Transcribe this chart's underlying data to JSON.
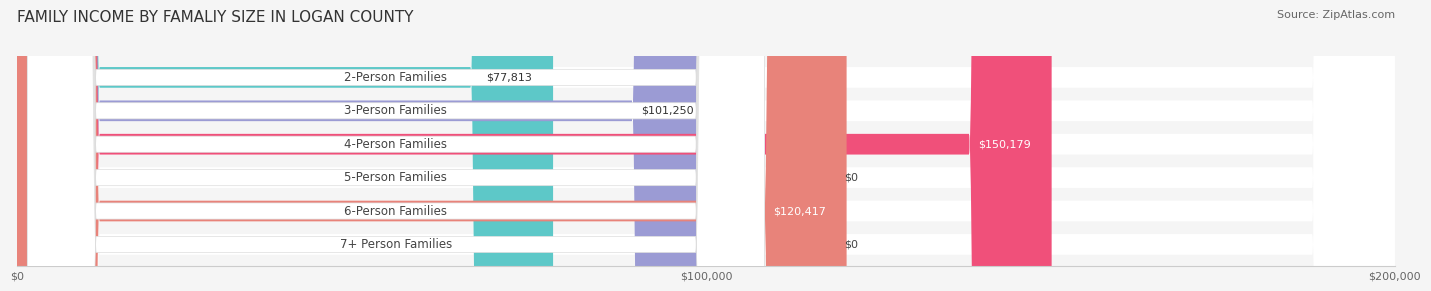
{
  "title": "FAMILY INCOME BY FAMALIY SIZE IN LOGAN COUNTY",
  "source": "Source: ZipAtlas.com",
  "categories": [
    "2-Person Families",
    "3-Person Families",
    "4-Person Families",
    "5-Person Families",
    "6-Person Families",
    "7+ Person Families"
  ],
  "values": [
    77813,
    101250,
    150179,
    0,
    120417,
    0
  ],
  "bar_colors": [
    "#5DC8C8",
    "#9B9BD4",
    "#F0507A",
    "#F5C897",
    "#E8837A",
    "#A0B8D8"
  ],
  "label_colors": [
    "#333333",
    "#333333",
    "#ffffff",
    "#333333",
    "#ffffff",
    "#333333"
  ],
  "value_labels": [
    "$77,813",
    "$101,250",
    "$150,179",
    "$0",
    "$120,417",
    "$0"
  ],
  "xlim": [
    0,
    200000
  ],
  "xticks": [
    0,
    100000,
    200000
  ],
  "xtick_labels": [
    "$0",
    "$100,000",
    "$200,000"
  ],
  "background_color": "#f5f5f5",
  "title_fontsize": 11,
  "label_fontsize": 8.5,
  "value_fontsize": 8,
  "source_fontsize": 8
}
